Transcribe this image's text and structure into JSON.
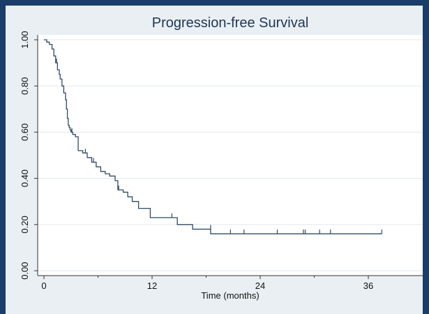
{
  "chart_data": {
    "type": "line",
    "title": "Progression-free Survival",
    "xlabel": "Time (months)",
    "ylabel": "",
    "xlim": [
      0,
      40.5
    ],
    "ylim": [
      0,
      1.04
    ],
    "xticks": [
      0,
      12,
      24,
      36
    ],
    "xtick_labels": [
      "0",
      "12",
      "24",
      "36"
    ],
    "yticks": [
      0,
      0.2,
      0.4,
      0.6,
      0.8,
      1.0
    ],
    "ytick_labels": [
      "0.00",
      "0.20",
      "0.40",
      "0.60",
      "0.80",
      "1.00"
    ],
    "grid": "horizontal",
    "legend": "none",
    "colors": {
      "line": "#2f4b66",
      "grid": "#ffffff",
      "plot_bg": "#ffffff",
      "outer_bg": "#e9eff3",
      "border": "#1a3d6a"
    },
    "series": [
      {
        "step": true,
        "x": [
          0,
          0.3,
          0.6,
          0.9,
          1.1,
          1.3,
          1.5,
          1.7,
          1.8,
          2.0,
          2.2,
          2.4,
          2.5,
          2.6,
          2.7,
          2.8,
          2.85,
          2.9,
          3.0,
          3.2,
          3.5,
          3.8,
          4.3,
          4.8,
          5.3,
          5.8,
          6.3,
          6.8,
          7.3,
          7.9,
          8.2,
          8.8,
          9.3,
          9.8,
          10.5,
          11.8,
          12.5,
          14.8,
          16.5,
          18.5,
          20.0,
          25.0,
          30.0,
          35.0,
          37.5
        ],
        "y": [
          1.0,
          0.99,
          0.98,
          0.96,
          0.93,
          0.9,
          0.87,
          0.85,
          0.83,
          0.8,
          0.77,
          0.74,
          0.7,
          0.66,
          0.63,
          0.62,
          0.62,
          0.61,
          0.6,
          0.59,
          0.58,
          0.52,
          0.51,
          0.49,
          0.47,
          0.45,
          0.43,
          0.42,
          0.41,
          0.39,
          0.35,
          0.34,
          0.32,
          0.3,
          0.27,
          0.23,
          0.23,
          0.2,
          0.18,
          0.16,
          0.16,
          0.16,
          0.16,
          0.16,
          0.16
        ]
      }
    ],
    "censor_marks": [
      {
        "x": 1.4,
        "y": 0.9
      },
      {
        "x": 2.2,
        "y": 0.77
      },
      {
        "x": 3.1,
        "y": 0.6
      },
      {
        "x": 4.6,
        "y": 0.51
      },
      {
        "x": 5.5,
        "y": 0.47
      },
      {
        "x": 8.3,
        "y": 0.35
      },
      {
        "x": 14.2,
        "y": 0.23
      },
      {
        "x": 18.5,
        "y": 0.18
      },
      {
        "x": 20.7,
        "y": 0.16
      },
      {
        "x": 22.2,
        "y": 0.16
      },
      {
        "x": 25.9,
        "y": 0.16
      },
      {
        "x": 28.8,
        "y": 0.16
      },
      {
        "x": 29.0,
        "y": 0.16
      },
      {
        "x": 30.6,
        "y": 0.16
      },
      {
        "x": 31.8,
        "y": 0.16
      },
      {
        "x": 37.5,
        "y": 0.16
      }
    ]
  }
}
